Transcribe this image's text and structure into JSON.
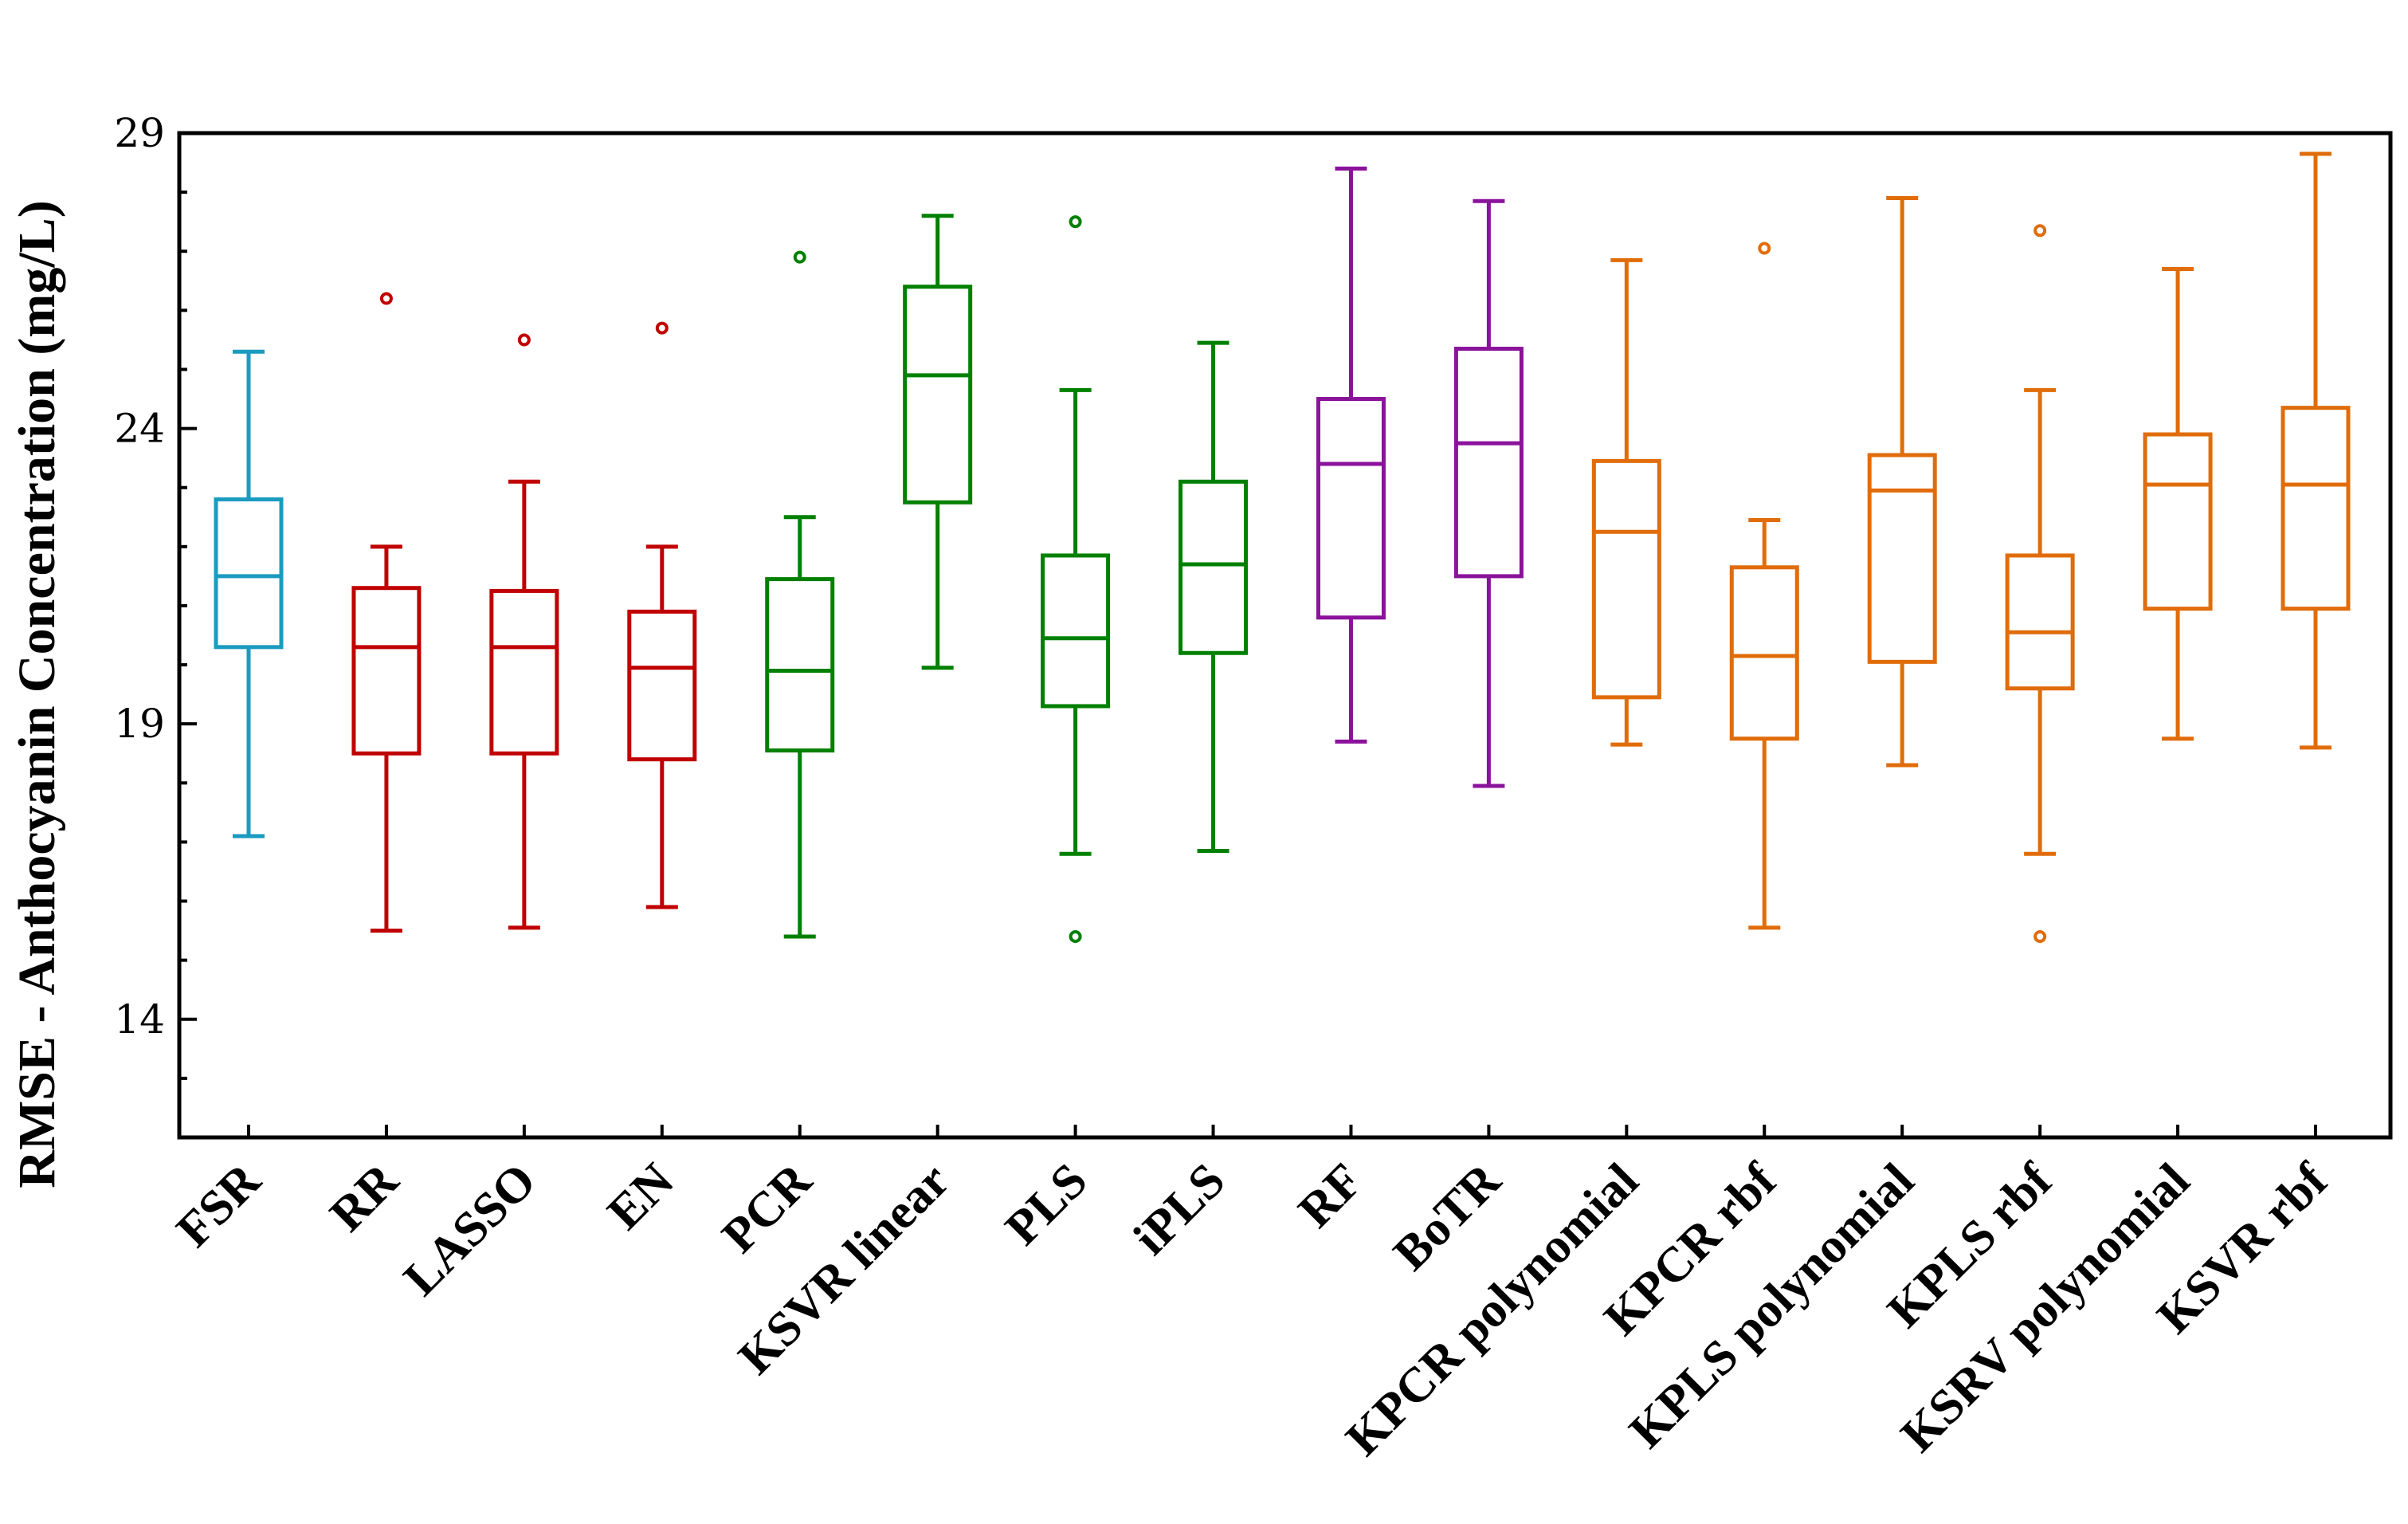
{
  "chart_data": {
    "type": "boxplot",
    "title": "",
    "xlabel": "",
    "ylabel": "RMSE - Anthocyanin Concentration (mg/L)",
    "ylim": [
      12,
      29
    ],
    "yticks": [
      14,
      19,
      24,
      29
    ],
    "minor_step": 1,
    "colors": {
      "blue": "#1a9bbf",
      "red": "#c00000",
      "green": "#008000",
      "purple": "#8b129b",
      "orange": "#e06c0a"
    },
    "categories": [
      {
        "label": "FSR",
        "color": "blue",
        "min": 17.1,
        "q1": 20.3,
        "median": 21.5,
        "q3": 22.8,
        "max": 25.3,
        "outliers": []
      },
      {
        "label": "RR",
        "color": "red",
        "min": 15.5,
        "q1": 18.5,
        "median": 20.3,
        "q3": 21.3,
        "max": 22.0,
        "outliers": [
          26.2
        ]
      },
      {
        "label": "LASSO",
        "color": "red",
        "min": 15.55,
        "q1": 18.5,
        "median": 20.3,
        "q3": 21.25,
        "max": 23.1,
        "outliers": [
          25.5
        ]
      },
      {
        "label": "EN",
        "color": "red",
        "min": 15.9,
        "q1": 18.4,
        "median": 19.95,
        "q3": 20.9,
        "max": 22.0,
        "outliers": [
          25.7
        ]
      },
      {
        "label": "PCR",
        "color": "green",
        "min": 15.4,
        "q1": 18.55,
        "median": 19.9,
        "q3": 21.45,
        "max": 22.5,
        "outliers": [
          26.9
        ]
      },
      {
        "label": "KSVR linear",
        "color": "green",
        "min": 19.95,
        "q1": 22.75,
        "median": 24.9,
        "q3": 26.4,
        "max": 27.6,
        "outliers": []
      },
      {
        "label": "PLS",
        "color": "green",
        "min": 16.8,
        "q1": 19.3,
        "median": 20.45,
        "q3": 21.85,
        "max": 24.65,
        "outliers": [
          27.5,
          15.4
        ]
      },
      {
        "label": "iPLS",
        "color": "green",
        "min": 16.85,
        "q1": 20.2,
        "median": 21.7,
        "q3": 23.1,
        "max": 25.45,
        "outliers": []
      },
      {
        "label": "RF",
        "color": "purple",
        "min": 18.7,
        "q1": 20.8,
        "median": 23.4,
        "q3": 24.5,
        "max": 28.4,
        "outliers": []
      },
      {
        "label": "BoTR",
        "color": "purple",
        "min": 17.95,
        "q1": 21.5,
        "median": 23.75,
        "q3": 25.35,
        "max": 27.85,
        "outliers": []
      },
      {
        "label": "KPCR polynomial",
        "color": "orange",
        "min": 18.65,
        "q1": 19.45,
        "median": 22.25,
        "q3": 23.45,
        "max": 26.85,
        "outliers": []
      },
      {
        "label": "KPCR rbf",
        "color": "orange",
        "min": 15.55,
        "q1": 18.75,
        "median": 20.15,
        "q3": 21.65,
        "max": 22.45,
        "outliers": [
          27.05
        ]
      },
      {
        "label": "KPLS polynomial",
        "color": "orange",
        "min": 18.3,
        "q1": 20.05,
        "median": 22.95,
        "q3": 23.55,
        "max": 27.9,
        "outliers": []
      },
      {
        "label": "KPLS rbf",
        "color": "orange",
        "min": 16.8,
        "q1": 19.6,
        "median": 20.55,
        "q3": 21.85,
        "max": 24.65,
        "outliers": [
          27.35,
          15.4
        ]
      },
      {
        "label": "KSRV polynomial",
        "color": "orange",
        "min": 18.75,
        "q1": 20.95,
        "median": 23.05,
        "q3": 23.9,
        "max": 26.7,
        "outliers": []
      },
      {
        "label": "KSVR rbf",
        "color": "orange",
        "min": 18.6,
        "q1": 20.95,
        "median": 23.05,
        "q3": 24.35,
        "max": 28.65,
        "outliers": []
      }
    ]
  }
}
